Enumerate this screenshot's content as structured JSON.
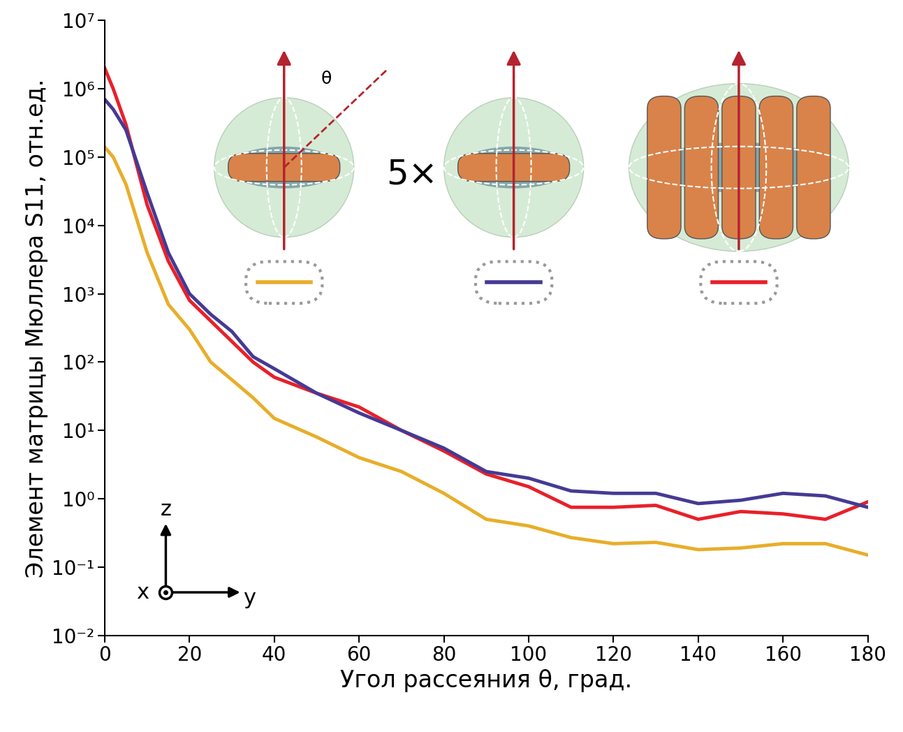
{
  "chart_data": {
    "type": "line",
    "x_label": "Угол рассеяния θ, град.",
    "y_label": "Элемент матрицы Мюллера S11, отн.ед.",
    "annotations": [
      "θ",
      "5×",
      "z",
      "x",
      "y"
    ],
    "log": "y",
    "x": [
      0,
      2,
      5,
      10,
      15,
      20,
      25,
      30,
      35,
      40,
      50,
      60,
      70,
      80,
      90,
      100,
      110,
      120,
      130,
      140,
      150,
      160,
      170,
      180
    ],
    "series": [
      {
        "color": "#e8202a",
        "values": [
          2000000,
          1000000,
          300000,
          20000,
          3000,
          800,
          400,
          200,
          100,
          60,
          35,
          22,
          10,
          5,
          2.3,
          1.5,
          0.75,
          0.75,
          0.8,
          0.5,
          0.65,
          0.6,
          0.5,
          0.9
        ]
      },
      {
        "color": "#453a94",
        "values": [
          700000,
          500000,
          250000,
          30000,
          4000,
          1000,
          500,
          280,
          120,
          80,
          35,
          18,
          10,
          5.5,
          2.5,
          2,
          1.3,
          1.2,
          1.2,
          0.85,
          0.95,
          1.2,
          1.1,
          0.75
        ]
      },
      {
        "color": "#e8ae2a",
        "values": [
          140000,
          100000,
          40000,
          4000,
          700,
          300,
          100,
          55,
          30,
          15,
          8,
          4,
          2.5,
          1.2,
          0.5,
          0.4,
          0.27,
          0.22,
          0.23,
          0.18,
          0.19,
          0.22,
          0.22,
          0.15
        ]
      }
    ],
    "xlim": [
      0,
      180
    ],
    "xticks": [
      0,
      20,
      40,
      60,
      80,
      100,
      120,
      140,
      160,
      180
    ],
    "ylim": [
      0.01,
      10000000
    ],
    "yticks": [
      {
        "value": 0.01,
        "label": "10⁻²"
      },
      {
        "value": 0.1,
        "label": "10⁻¹"
      },
      {
        "value": 1,
        "label": "10⁰"
      },
      {
        "value": 10,
        "label": "10¹"
      },
      {
        "value": 100,
        "label": "10²"
      },
      {
        "value": 1000,
        "label": "10³"
      },
      {
        "value": 10000,
        "label": "10⁴"
      },
      {
        "value": 100000,
        "label": "10⁵"
      },
      {
        "value": 1000000,
        "label": "10⁶"
      },
      {
        "value": 10000000,
        "label": "10⁷"
      }
    ],
    "grid": false
  }
}
